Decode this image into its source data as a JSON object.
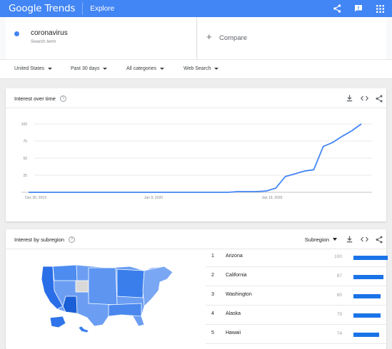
{
  "header": {
    "logo": "Google Trends",
    "section": "Explore",
    "icons": [
      "share-icon",
      "feedback-icon",
      "apps-grid-icon"
    ]
  },
  "search": {
    "term": "coronavirus",
    "term_type": "Search term",
    "compare_label": "Compare",
    "term_color": "#4285f4"
  },
  "filters": {
    "region": "United States",
    "time": "Past 30 days",
    "category": "All categories",
    "property": "Web Search"
  },
  "interest_over_time": {
    "title": "Interest over time"
  },
  "chart_data": {
    "type": "line",
    "title": "",
    "xlabel": "",
    "ylabel": "",
    "ylim": [
      0,
      100
    ],
    "yticks": [
      25,
      50,
      75,
      100
    ],
    "xtick_labels": [
      "Dec 30, 2019",
      "Jan 9, 2020",
      "Jan 19, 2020"
    ],
    "series": [
      {
        "color": "#4285f4",
        "values": [
          0,
          0,
          0,
          0,
          0,
          0,
          0,
          0,
          0,
          0,
          0,
          0,
          0,
          0,
          0,
          0,
          0,
          0,
          0,
          0,
          0,
          0,
          1,
          1,
          1,
          2,
          6,
          23,
          27,
          31,
          33,
          67,
          73,
          82,
          90,
          100
        ]
      }
    ],
    "grid": true
  },
  "interest_by_subregion": {
    "title": "Interest by subregion",
    "selector": "Subregion",
    "rows": [
      {
        "rank": "1",
        "name": "Arizona",
        "value": "100",
        "fraction": 1.0
      },
      {
        "rank": "2",
        "name": "California",
        "value": "87",
        "fraction": 0.87
      },
      {
        "rank": "3",
        "name": "Washington",
        "value": "80",
        "fraction": 0.8
      },
      {
        "rank": "4",
        "name": "Alaska",
        "value": "79",
        "fraction": 0.79
      },
      {
        "rank": "5",
        "name": "Hawaii",
        "value": "74",
        "fraction": 0.74
      }
    ]
  }
}
